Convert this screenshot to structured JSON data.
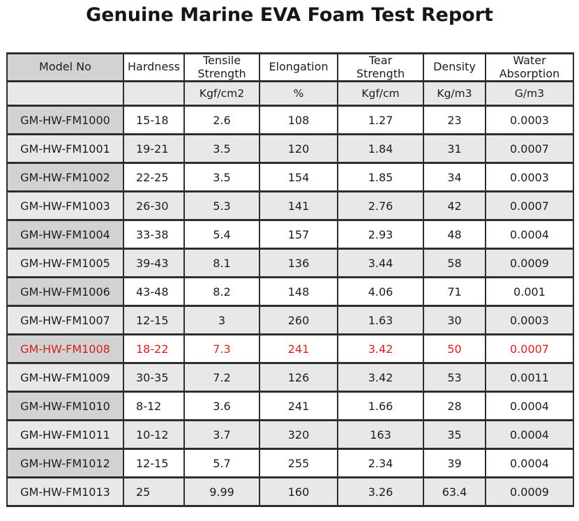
{
  "title": "Genuine Marine EVA Foam Test Report",
  "colors": {
    "highlight": "#d32020",
    "model_shade": "#d2d2d2",
    "alt_shade": "#e8e8e8",
    "border": "#2e2e2e"
  },
  "table": {
    "columns": [
      {
        "key": "model",
        "label": "Model No",
        "unit": ""
      },
      {
        "key": "hardness",
        "label": "Hardness",
        "unit": ""
      },
      {
        "key": "tensile",
        "label": "Tensile\nStrength",
        "unit": "Kgf/cm2"
      },
      {
        "key": "elongation",
        "label": "Elongation",
        "unit": "%"
      },
      {
        "key": "tear",
        "label": "Tear\nStrength",
        "unit": "Kgf/cm"
      },
      {
        "key": "density",
        "label": "Density",
        "unit": "Kg/m3"
      },
      {
        "key": "water",
        "label": "Water\nAbsorption",
        "unit": "G/m3"
      }
    ],
    "rows": [
      {
        "model": "GM-HW-FM1000",
        "hardness": "15-18",
        "tensile": "2.6",
        "elongation": "108",
        "tear": "1.27",
        "density": "23",
        "water": "0.0003",
        "highlight": false
      },
      {
        "model": "GM-HW-FM1001",
        "hardness": "19-21",
        "tensile": "3.5",
        "elongation": "120",
        "tear": "1.84",
        "density": "31",
        "water": "0.0007",
        "highlight": false
      },
      {
        "model": "GM-HW-FM1002",
        "hardness": "22-25",
        "tensile": "3.5",
        "elongation": "154",
        "tear": "1.85",
        "density": "34",
        "water": "0.0003",
        "highlight": false
      },
      {
        "model": "GM-HW-FM1003",
        "hardness": "26-30",
        "tensile": "5.3",
        "elongation": "141",
        "tear": "2.76",
        "density": "42",
        "water": "0.0007",
        "highlight": false
      },
      {
        "model": "GM-HW-FM1004",
        "hardness": "33-38",
        "tensile": "5.4",
        "elongation": "157",
        "tear": "2.93",
        "density": "48",
        "water": "0.0004",
        "highlight": false
      },
      {
        "model": "GM-HW-FM1005",
        "hardness": "39-43",
        "tensile": "8.1",
        "elongation": "136",
        "tear": "3.44",
        "density": "58",
        "water": "0.0009",
        "highlight": false
      },
      {
        "model": "GM-HW-FM1006",
        "hardness": "43-48",
        "tensile": "8.2",
        "elongation": "148",
        "tear": "4.06",
        "density": "71",
        "water": "0.001",
        "highlight": false
      },
      {
        "model": "GM-HW-FM1007",
        "hardness": "12-15",
        "tensile": "3",
        "elongation": "260",
        "tear": "1.63",
        "density": "30",
        "water": "0.0003",
        "highlight": false
      },
      {
        "model": "GM-HW-FM1008",
        "hardness": "18-22",
        "tensile": "7.3",
        "elongation": "241",
        "tear": "3.42",
        "density": "50",
        "water": "0.0007",
        "highlight": true
      },
      {
        "model": "GM-HW-FM1009",
        "hardness": "30-35",
        "tensile": "7.2",
        "elongation": "126",
        "tear": "3.42",
        "density": "53",
        "water": "0.0011",
        "highlight": false
      },
      {
        "model": "GM-HW-FM1010",
        "hardness": "8-12",
        "tensile": "3.6",
        "elongation": "241",
        "tear": "1.66",
        "density": "28",
        "water": "0.0004",
        "highlight": false
      },
      {
        "model": "GM-HW-FM1011",
        "hardness": "10-12",
        "tensile": "3.7",
        "elongation": "320",
        "tear": "163",
        "density": "35",
        "water": "0.0004",
        "highlight": false
      },
      {
        "model": "GM-HW-FM1012",
        "hardness": "12-15",
        "tensile": "5.7",
        "elongation": "255",
        "tear": "2.34",
        "density": "39",
        "water": "0.0004",
        "highlight": false
      },
      {
        "model": "GM-HW-FM1013",
        "hardness": "25",
        "tensile": "9.99",
        "elongation": "160",
        "tear": "3.26",
        "density": "63.4",
        "water": "0.0009",
        "highlight": false
      }
    ]
  }
}
